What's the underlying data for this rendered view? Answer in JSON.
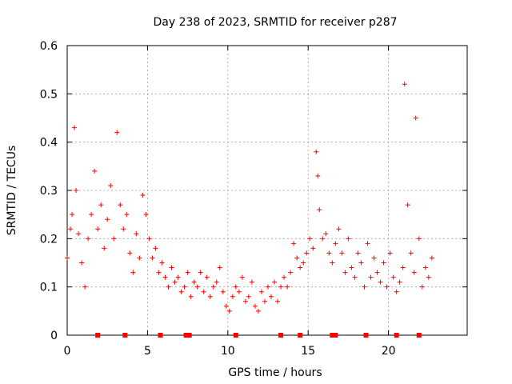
{
  "chart_data": {
    "type": "scatter",
    "title": "Day 238 of 2023, SRMTID for receiver p287",
    "xlabel": "GPS time / hours",
    "ylabel": "SRMTID / TECUs",
    "xlim": [
      0,
      24.9
    ],
    "ylim": [
      0,
      0.6
    ],
    "xticks": [
      0,
      5,
      10,
      15,
      20
    ],
    "yticks": [
      0,
      0.1,
      0.2,
      0.3,
      0.4,
      0.5,
      0.6
    ],
    "xtick_labels": [
      "0",
      "5",
      "10",
      "15",
      "20"
    ],
    "ytick_labels": [
      "0",
      "0.1",
      "0.2",
      "0.3",
      "0.4",
      "0.5",
      "0.6"
    ],
    "grid": true,
    "marker": "+",
    "color": "#ff0000",
    "series": [
      {
        "name": "p287",
        "x": [
          0.0,
          0.2,
          0.3,
          0.45,
          0.55,
          0.7,
          0.9,
          1.1,
          1.3,
          1.5,
          1.7,
          1.9,
          2.1,
          2.3,
          2.5,
          2.7,
          2.9,
          3.1,
          3.3,
          3.5,
          3.7,
          3.9,
          4.1,
          4.3,
          4.5,
          4.7,
          4.9,
          5.1,
          5.3,
          5.5,
          5.7,
          5.9,
          6.1,
          6.3,
          6.5,
          6.7,
          6.9,
          7.1,
          7.3,
          7.5,
          7.7,
          7.9,
          8.1,
          8.3,
          8.5,
          8.7,
          8.9,
          9.1,
          9.3,
          9.5,
          9.7,
          9.9,
          10.1,
          10.3,
          10.5,
          10.7,
          10.9,
          11.1,
          11.3,
          11.5,
          11.7,
          11.9,
          12.1,
          12.3,
          12.5,
          12.7,
          12.9,
          13.1,
          13.3,
          13.5,
          13.7,
          13.9,
          14.1,
          14.3,
          14.5,
          14.7,
          14.9,
          15.1,
          15.3,
          15.5,
          15.6,
          15.7,
          15.9,
          16.1,
          16.3,
          16.5,
          16.7,
          16.9,
          17.1,
          17.3,
          17.5,
          17.7,
          17.9,
          18.1,
          18.3,
          18.5,
          18.7,
          18.9,
          19.1,
          19.3,
          19.5,
          19.7,
          19.9,
          20.1,
          20.3,
          20.5,
          20.7,
          20.9,
          21.0,
          21.2,
          21.4,
          21.6,
          21.7,
          21.9,
          22.1,
          22.3,
          22.5,
          22.7
        ],
        "y": [
          0.16,
          0.22,
          0.25,
          0.43,
          0.3,
          0.21,
          0.15,
          0.1,
          0.2,
          0.25,
          0.34,
          0.22,
          0.27,
          0.18,
          0.24,
          0.31,
          0.2,
          0.42,
          0.27,
          0.22,
          0.25,
          0.17,
          0.13,
          0.21,
          0.16,
          0.29,
          0.25,
          0.2,
          0.16,
          0.18,
          0.13,
          0.15,
          0.12,
          0.1,
          0.14,
          0.11,
          0.12,
          0.09,
          0.1,
          0.13,
          0.08,
          0.11,
          0.1,
          0.13,
          0.09,
          0.12,
          0.08,
          0.1,
          0.11,
          0.14,
          0.09,
          0.06,
          0.05,
          0.08,
          0.1,
          0.09,
          0.12,
          0.07,
          0.08,
          0.11,
          0.06,
          0.05,
          0.09,
          0.07,
          0.1,
          0.08,
          0.11,
          0.07,
          0.1,
          0.12,
          0.1,
          0.13,
          0.19,
          0.16,
          0.14,
          0.15,
          0.17,
          0.2,
          0.18,
          0.38,
          0.33,
          0.26,
          0.2,
          0.21,
          0.17,
          0.15,
          0.19,
          0.22,
          0.17,
          0.13,
          0.2,
          0.14,
          0.12,
          0.17,
          0.15,
          0.1,
          0.19,
          0.12,
          0.16,
          0.13,
          0.11,
          0.15,
          0.1,
          0.17,
          0.12,
          0.09,
          0.11,
          0.14,
          0.52,
          0.27,
          0.17,
          0.13,
          0.45,
          0.2,
          0.1,
          0.14,
          0.12,
          0.16
        ]
      }
    ],
    "zero_markers_x": [
      1.9,
      3.6,
      5.8,
      7.4,
      7.6,
      10.5,
      13.3,
      14.5,
      16.5,
      16.7,
      18.6,
      20.5,
      21.9
    ]
  }
}
